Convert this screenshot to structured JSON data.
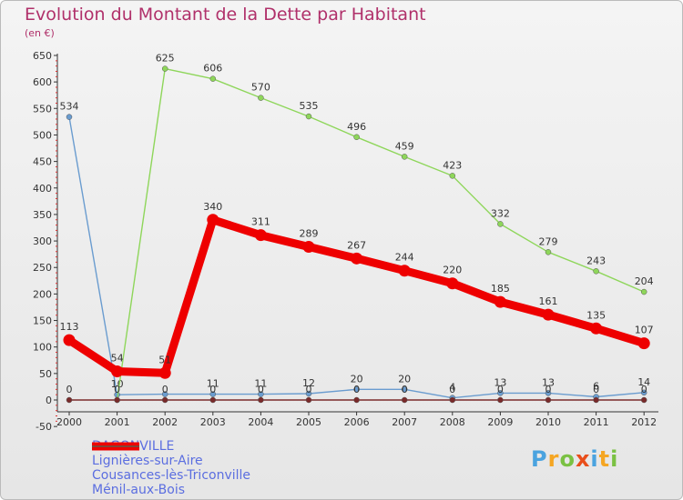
{
  "chart_data": {
    "type": "line",
    "title": "Evolution du Montant de la Dette par Habitant",
    "subtitle": "(en €)",
    "xlabel": "",
    "ylabel": "",
    "ylim": [
      -50,
      650
    ],
    "yticks": [
      -50,
      0,
      50,
      100,
      150,
      200,
      250,
      300,
      350,
      400,
      450,
      500,
      550,
      600,
      650
    ],
    "ytick_labels": [
      "-50",
      "0",
      "50",
      "100",
      "150",
      "200",
      "250",
      "300",
      "350",
      "400",
      "450",
      "500",
      "550",
      "600",
      "650"
    ],
    "categories": [
      "2000",
      "2001",
      "2002",
      "2003",
      "2004",
      "2005",
      "2006",
      "2007",
      "2008",
      "2009",
      "2010",
      "2011",
      "2012"
    ],
    "series": [
      {
        "name": "Lignières-sur-Aire",
        "color": "#6a9ccf",
        "values": [
          534,
          10,
          11,
          11,
          11,
          12,
          20,
          20,
          4,
          13,
          13,
          6,
          14
        ],
        "labels": [
          "534",
          "10",
          "",
          "11",
          "11",
          "12",
          "20",
          "20",
          "4",
          "13",
          "13",
          "6",
          "14"
        ]
      },
      {
        "name": "Cousances-lès-Triconville",
        "color": "#8ed65a",
        "values": [
          null,
          0,
          625,
          606,
          570,
          535,
          496,
          459,
          423,
          332,
          279,
          243,
          204
        ],
        "labels": [
          "",
          "",
          "625",
          "606",
          "570",
          "535",
          "496",
          "459",
          "423",
          "332",
          "279",
          "243",
          "204"
        ]
      },
      {
        "name": "Ménil-aux-Bois",
        "color": "#7a2a2a",
        "values": [
          0,
          0,
          0,
          0,
          0,
          0,
          0,
          0,
          0,
          0,
          0,
          0,
          0
        ],
        "labels": [
          "0",
          "0",
          "0",
          "0",
          "0",
          "0",
          "0",
          "0",
          "0",
          "0",
          "0",
          "0",
          "0"
        ]
      },
      {
        "name": "DAGONVILLE",
        "color": "#ee0000",
        "values": [
          113,
          54,
          51,
          340,
          311,
          289,
          267,
          244,
          220,
          185,
          161,
          135,
          107
        ],
        "labels": [
          "113",
          "54",
          "51",
          "340",
          "311",
          "289",
          "267",
          "244",
          "220",
          "185",
          "161",
          "135",
          "107"
        ]
      }
    ],
    "legend": [
      {
        "name": "DAGONVILLE",
        "color": "#ee0000",
        "thick": true
      },
      {
        "name": "Lignières-sur-Aire",
        "color": "#6a9ccf",
        "thick": false
      },
      {
        "name": "Cousances-lès-Triconville",
        "color": "#8ed65a",
        "thick": false
      },
      {
        "name": "Ménil-aux-Bois",
        "color": "#7a2a2a",
        "thick": false
      }
    ],
    "grid": false,
    "legend_position": "bottom-left"
  },
  "logo": {
    "text": "Proxiti",
    "colors": [
      "#4aa3df",
      "#f5a623",
      "#7ac143",
      "#e94e1b",
      "#4aa3df",
      "#f5a623",
      "#7ac143"
    ]
  }
}
